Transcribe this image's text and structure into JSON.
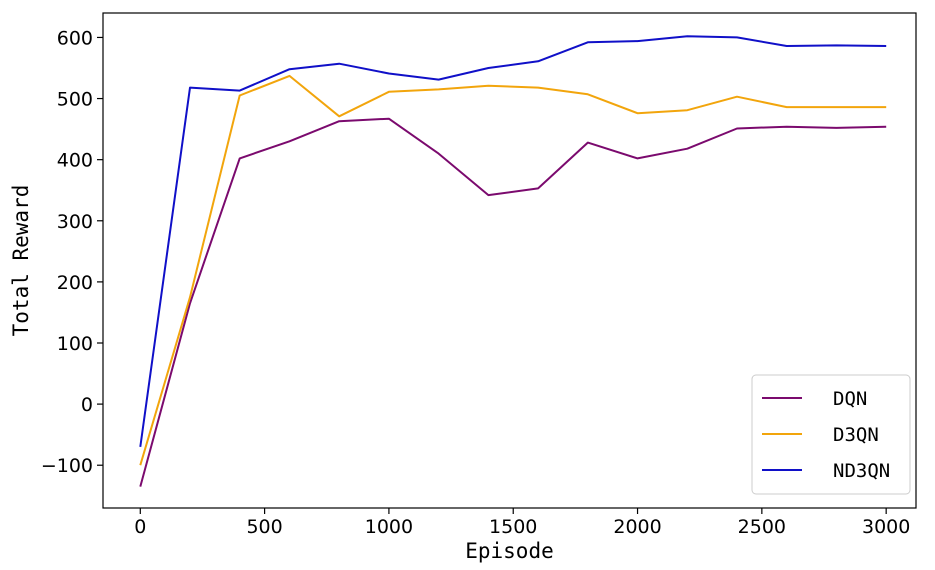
{
  "chart_data": {
    "type": "line",
    "xlabel": "Episode",
    "ylabel": "Total Reward",
    "xlim": [
      -150,
      3120
    ],
    "ylim": [
      -170,
      640
    ],
    "xticks": [
      0,
      500,
      1000,
      1500,
      2000,
      2500,
      3000
    ],
    "yticks": [
      -100,
      0,
      100,
      200,
      300,
      400,
      500,
      600
    ],
    "grid": false,
    "legend_position": "bottom-right",
    "x": [
      0,
      200,
      400,
      600,
      800,
      1000,
      1200,
      1400,
      1600,
      1800,
      2000,
      2200,
      2400,
      2600,
      2800,
      3000
    ],
    "series": [
      {
        "name": "DQN",
        "color": "#7b0a6e",
        "values": [
          -135,
          165,
          402,
          430,
          463,
          467,
          410,
          342,
          353,
          428,
          402,
          418,
          451,
          454,
          452,
          454
        ]
      },
      {
        "name": "D3QN",
        "color": "#f2a50c",
        "values": [
          -100,
          175,
          505,
          537,
          471,
          511,
          515,
          521,
          518,
          507,
          476,
          481,
          503,
          486,
          486,
          486
        ]
      },
      {
        "name": "ND3QN",
        "color": "#1010c8",
        "values": [
          -70,
          518,
          513,
          548,
          557,
          541,
          531,
          550,
          561,
          592,
          594,
          602,
          600,
          586,
          587,
          586
        ]
      }
    ]
  }
}
